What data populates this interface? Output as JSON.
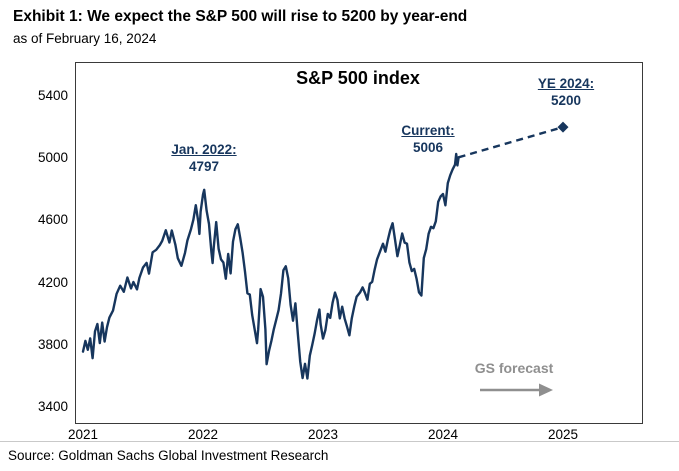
{
  "header": {
    "title": "Exhibit 1: We expect the S&P 500 will rise to 5200 by year-end",
    "subtitle": "as of February 16, 2024"
  },
  "chart": {
    "title": "S&P 500 index",
    "annotations": {
      "jan2022": {
        "label": "Jan. 2022:",
        "value": "4797"
      },
      "current": {
        "label": "Current:",
        "value": "5006"
      },
      "ye2024": {
        "label": "YE 2024:",
        "value": "5200"
      },
      "forecast_label": "GS forecast"
    },
    "colors": {
      "line": "#17365d",
      "annotation": "#17365d",
      "forecast_gray": "#8f8f8f"
    }
  },
  "footer": {
    "source": "Source: Goldman Sachs Global Investment Research"
  },
  "chart_data": {
    "type": "line",
    "title": "S&P 500 index",
    "xlabel": "",
    "ylabel": "",
    "x_ticks": [
      2021,
      2022,
      2023,
      2024,
      2025
    ],
    "y_ticks": [
      3400,
      3800,
      4200,
      4600,
      5000,
      5400
    ],
    "ylim": [
      3400,
      5400
    ],
    "xlim": [
      2020.94,
      2025.66
    ],
    "grid": false,
    "legend": "none",
    "series": [
      {
        "name": "S&P 500 index",
        "style": "solid",
        "points": [
          [
            2021.0,
            3756
          ],
          [
            2021.02,
            3825
          ],
          [
            2021.04,
            3768
          ],
          [
            2021.06,
            3841
          ],
          [
            2021.08,
            3714
          ],
          [
            2021.1,
            3886
          ],
          [
            2021.12,
            3934
          ],
          [
            2021.14,
            3811
          ],
          [
            2021.16,
            3943
          ],
          [
            2021.18,
            3821
          ],
          [
            2021.2,
            3913
          ],
          [
            2021.22,
            3975
          ],
          [
            2021.25,
            4020
          ],
          [
            2021.28,
            4128
          ],
          [
            2021.31,
            4180
          ],
          [
            2021.34,
            4141
          ],
          [
            2021.37,
            4233
          ],
          [
            2021.4,
            4163
          ],
          [
            2021.42,
            4204
          ],
          [
            2021.45,
            4156
          ],
          [
            2021.47,
            4230
          ],
          [
            2021.5,
            4297
          ],
          [
            2021.53,
            4327
          ],
          [
            2021.55,
            4258
          ],
          [
            2021.58,
            4395
          ],
          [
            2021.61,
            4411
          ],
          [
            2021.64,
            4441
          ],
          [
            2021.66,
            4468
          ],
          [
            2021.69,
            4537
          ],
          [
            2021.72,
            4458
          ],
          [
            2021.74,
            4535
          ],
          [
            2021.77,
            4443
          ],
          [
            2021.79,
            4357
          ],
          [
            2021.82,
            4308
          ],
          [
            2021.85,
            4391
          ],
          [
            2021.87,
            4471
          ],
          [
            2021.9,
            4544
          ],
          [
            2021.92,
            4605
          ],
          [
            2021.94,
            4698
          ],
          [
            2021.96,
            4594
          ],
          [
            2021.97,
            4513
          ],
          [
            2021.98,
            4655
          ],
          [
            2022.0,
            4766
          ],
          [
            2022.01,
            4797
          ],
          [
            2022.03,
            4663
          ],
          [
            2022.05,
            4577
          ],
          [
            2022.07,
            4397
          ],
          [
            2022.08,
            4326
          ],
          [
            2022.09,
            4432
          ],
          [
            2022.11,
            4589
          ],
          [
            2022.13,
            4418
          ],
          [
            2022.15,
            4349
          ],
          [
            2022.17,
            4329
          ],
          [
            2022.19,
            4225
          ],
          [
            2022.21,
            4384
          ],
          [
            2022.23,
            4259
          ],
          [
            2022.25,
            4463
          ],
          [
            2022.27,
            4543
          ],
          [
            2022.29,
            4575
          ],
          [
            2022.31,
            4488
          ],
          [
            2022.33,
            4392
          ],
          [
            2022.35,
            4271
          ],
          [
            2022.37,
            4131
          ],
          [
            2022.39,
            4123
          ],
          [
            2022.41,
            3991
          ],
          [
            2022.43,
            3901
          ],
          [
            2022.45,
            3810
          ],
          [
            2022.46,
            3901
          ],
          [
            2022.48,
            4158
          ],
          [
            2022.5,
            4108
          ],
          [
            2022.52,
            3900
          ],
          [
            2022.53,
            3675
          ],
          [
            2022.55,
            3760
          ],
          [
            2022.57,
            3825
          ],
          [
            2022.59,
            3900
          ],
          [
            2022.61,
            3961
          ],
          [
            2022.63,
            4023
          ],
          [
            2022.65,
            4130
          ],
          [
            2022.67,
            4280
          ],
          [
            2022.69,
            4305
          ],
          [
            2022.71,
            4228
          ],
          [
            2022.73,
            4057
          ],
          [
            2022.75,
            3955
          ],
          [
            2022.77,
            4067
          ],
          [
            2022.79,
            3873
          ],
          [
            2022.81,
            3693
          ],
          [
            2022.83,
            3586
          ],
          [
            2022.85,
            3678
          ],
          [
            2022.87,
            3583
          ],
          [
            2022.89,
            3730
          ],
          [
            2022.91,
            3798
          ],
          [
            2022.93,
            3871
          ],
          [
            2022.95,
            3957
          ],
          [
            2022.97,
            4027
          ],
          [
            2022.98,
            3934
          ],
          [
            2023.0,
            3840
          ],
          [
            2023.02,
            3895
          ],
          [
            2023.04,
            3999
          ],
          [
            2023.06,
            3973
          ],
          [
            2023.08,
            4071
          ],
          [
            2023.1,
            4136
          ],
          [
            2023.12,
            4090
          ],
          [
            2023.14,
            3970
          ],
          [
            2023.16,
            4045
          ],
          [
            2023.18,
            3970
          ],
          [
            2023.2,
            3917
          ],
          [
            2023.22,
            3861
          ],
          [
            2023.24,
            3971
          ],
          [
            2023.26,
            4045
          ],
          [
            2023.28,
            4109
          ],
          [
            2023.31,
            4138
          ],
          [
            2023.33,
            4169
          ],
          [
            2023.35,
            4133
          ],
          [
            2023.37,
            4090
          ],
          [
            2023.39,
            4192
          ],
          [
            2023.41,
            4205
          ],
          [
            2023.43,
            4282
          ],
          [
            2023.45,
            4348
          ],
          [
            2023.48,
            4410
          ],
          [
            2023.5,
            4450
          ],
          [
            2023.52,
            4399
          ],
          [
            2023.54,
            4473
          ],
          [
            2023.56,
            4537
          ],
          [
            2023.58,
            4582
          ],
          [
            2023.6,
            4478
          ],
          [
            2023.62,
            4370
          ],
          [
            2023.64,
            4440
          ],
          [
            2023.66,
            4516
          ],
          [
            2023.68,
            4457
          ],
          [
            2023.7,
            4450
          ],
          [
            2023.72,
            4330
          ],
          [
            2023.74,
            4274
          ],
          [
            2023.76,
            4288
          ],
          [
            2023.78,
            4224
          ],
          [
            2023.8,
            4137
          ],
          [
            2023.82,
            4117
          ],
          [
            2023.84,
            4358
          ],
          [
            2023.86,
            4415
          ],
          [
            2023.88,
            4514
          ],
          [
            2023.9,
            4559
          ],
          [
            2023.92,
            4550
          ],
          [
            2023.94,
            4594
          ],
          [
            2023.96,
            4719
          ],
          [
            2023.98,
            4754
          ],
          [
            2024.0,
            4770
          ],
          [
            2024.02,
            4697
          ],
          [
            2024.04,
            4840
          ],
          [
            2024.06,
            4890
          ],
          [
            2024.08,
            4928
          ],
          [
            2024.1,
            4958
          ],
          [
            2024.11,
            5027
          ],
          [
            2024.12,
            4954
          ],
          [
            2024.13,
            5006
          ]
        ]
      },
      {
        "name": "GS forecast",
        "style": "dashed",
        "end_marker": "diamond",
        "points": [
          [
            2024.13,
            5006
          ],
          [
            2025.0,
            5200
          ]
        ]
      }
    ]
  }
}
